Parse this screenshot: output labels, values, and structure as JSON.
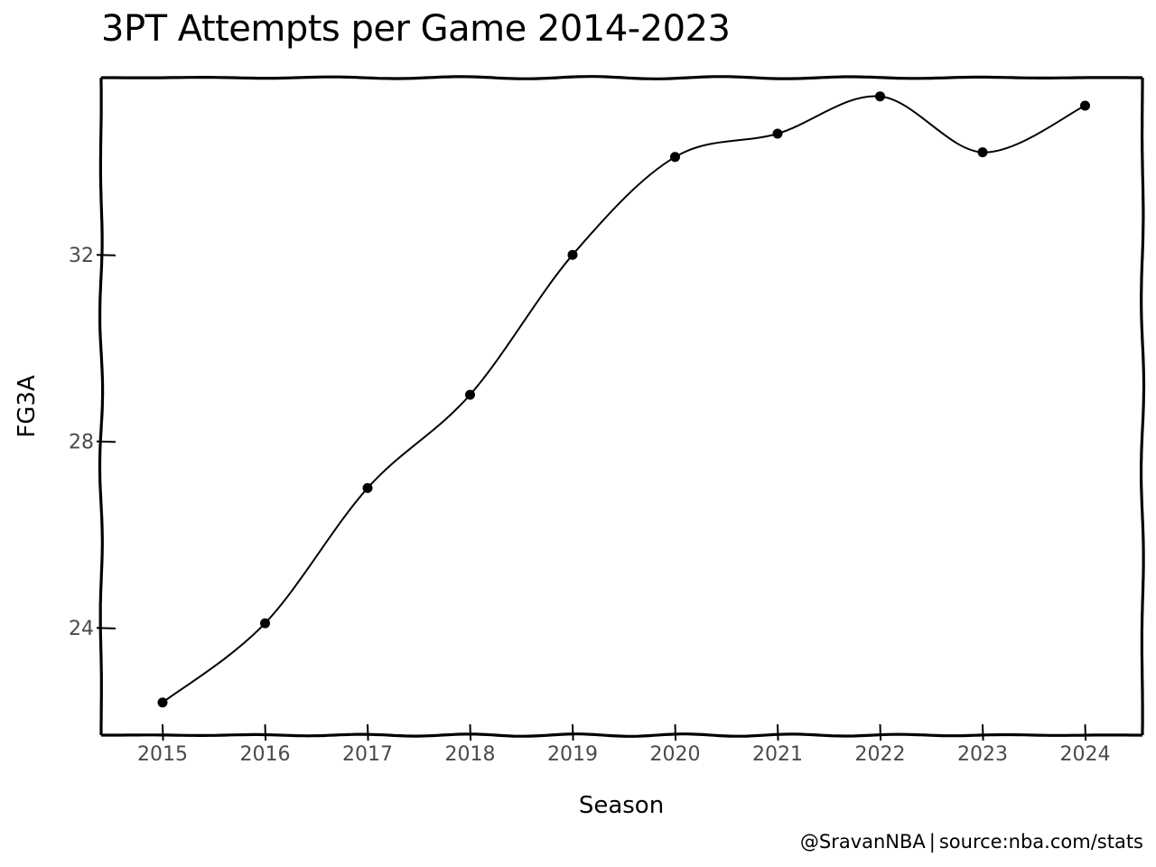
{
  "chart_data": {
    "type": "line",
    "title": "3PT Attempts per Game 2014-2023",
    "xlabel": "Season",
    "ylabel": "FG3A",
    "categories": [
      "2015",
      "2016",
      "2017",
      "2018",
      "2019",
      "2020",
      "2021",
      "2022",
      "2023",
      "2024"
    ],
    "series": [
      {
        "values": [
          22.4,
          24.1,
          27.0,
          29.0,
          32.0,
          34.1,
          34.6,
          35.4,
          34.2,
          35.2
        ]
      }
    ],
    "yticks": [
      24,
      28,
      32
    ],
    "ylim": [
      21.7,
      35.8
    ],
    "grid": false,
    "line_color": "#000000",
    "marker_color": "#000000"
  },
  "credit": {
    "handle": "@SravanNBA",
    "separator": "|",
    "source": "source:nba.com/stats"
  }
}
